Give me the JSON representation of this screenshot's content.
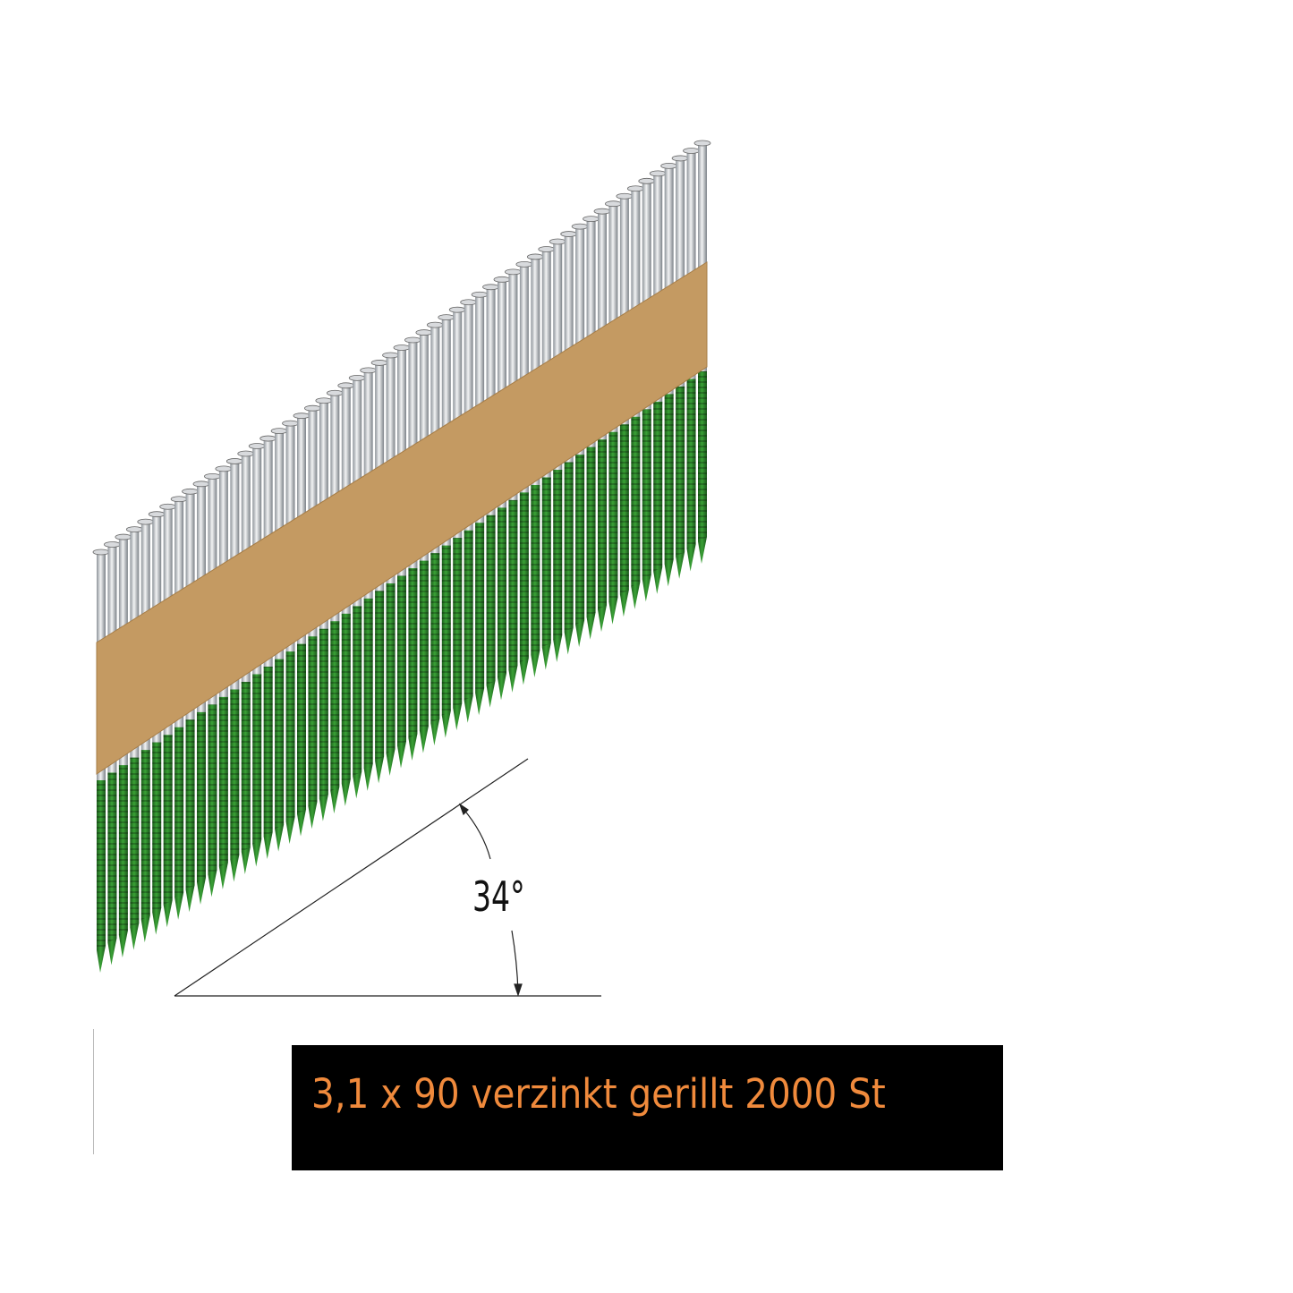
{
  "product": {
    "caption": "3,1 x 90 verzinkt gerillt 2000 St",
    "angle_label": "34°",
    "colors": {
      "caption_background": "#000000",
      "caption_text": "#f08a3c",
      "nail_coating": "#2f8a2c",
      "nail_zinc": "#c9ccd0",
      "paper_strip": "#c49a62"
    }
  }
}
